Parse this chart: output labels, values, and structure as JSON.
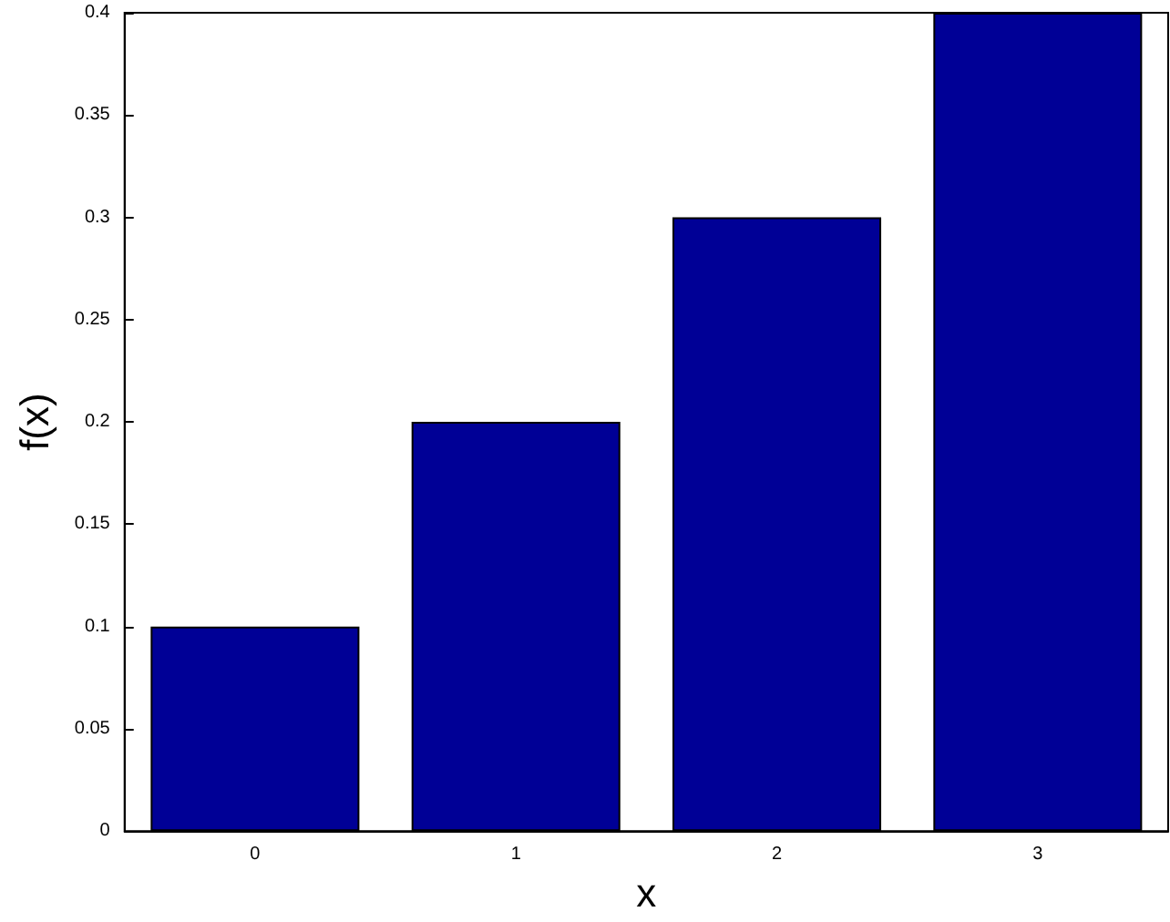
{
  "chart_data": {
    "type": "bar",
    "xlabel": "x",
    "ylabel": "f(x)",
    "categories": [
      "0",
      "1",
      "2",
      "3"
    ],
    "values": [
      0.1,
      0.2,
      0.3,
      0.4
    ],
    "color": "#000096",
    "ylim": [
      0,
      0.4
    ],
    "yticks": [
      0,
      0.05,
      0.1,
      0.15,
      0.2,
      0.25,
      0.3,
      0.35,
      0.4
    ]
  }
}
